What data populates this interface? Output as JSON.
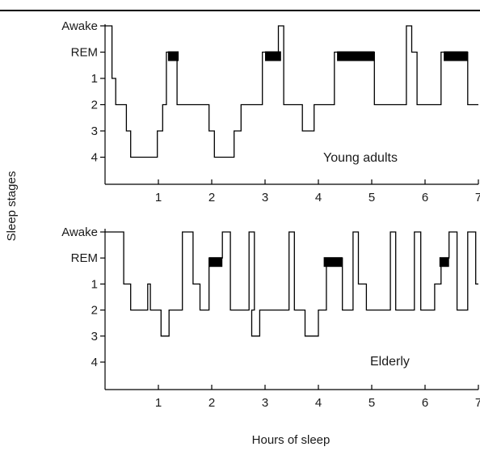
{
  "chart_data": [
    {
      "type": "line",
      "subtype": "hypnogram-step",
      "annotation": "Young adults",
      "xlabel": "",
      "ylabel": "Sleep stages",
      "xlim": [
        0,
        7
      ],
      "xticks": [
        "1",
        "2",
        "3",
        "4",
        "5",
        "6",
        "7"
      ],
      "yticks": [
        "Awake",
        "REM",
        "1",
        "2",
        "3",
        "4"
      ],
      "grid": false,
      "legend": "none",
      "colors": {
        "line": "#000000",
        "rem_bar": "#000000"
      },
      "series": [
        {
          "points": [
            [
              0,
              "Awake"
            ],
            [
              0.13,
              "1"
            ],
            [
              0.2,
              "2"
            ],
            [
              0.4,
              "3"
            ],
            [
              0.48,
              "4"
            ],
            [
              0.98,
              "3"
            ],
            [
              1.08,
              "2"
            ],
            [
              1.15,
              "REM"
            ],
            [
              1.35,
              "2"
            ],
            [
              1.95,
              "3"
            ],
            [
              2.05,
              "4"
            ],
            [
              2.42,
              "3"
            ],
            [
              2.55,
              "2"
            ],
            [
              2.95,
              "REM"
            ],
            [
              3.25,
              "Awake"
            ],
            [
              3.35,
              "2"
            ],
            [
              3.7,
              "3"
            ],
            [
              3.92,
              "2"
            ],
            [
              4.3,
              "REM"
            ],
            [
              5.05,
              "2"
            ],
            [
              5.65,
              "Awake"
            ],
            [
              5.75,
              "REM"
            ],
            [
              5.85,
              "2"
            ],
            [
              6.3,
              "REM"
            ],
            [
              6.8,
              "2"
            ],
            [
              7,
              "2"
            ]
          ]
        }
      ],
      "rem_periods": [
        [
          1.18,
          1.38
        ],
        [
          3.0,
          3.3
        ],
        [
          4.35,
          5.05
        ],
        [
          6.35,
          6.8
        ]
      ]
    },
    {
      "type": "line",
      "subtype": "hypnogram-step",
      "annotation": "Elderly",
      "xlabel": "Hours of sleep",
      "ylabel": "Sleep stages",
      "xlim": [
        0,
        7
      ],
      "xticks": [
        "1",
        "2",
        "3",
        "4",
        "5",
        "6",
        "7"
      ],
      "yticks": [
        "Awake",
        "REM",
        "1",
        "2",
        "3",
        "4"
      ],
      "grid": false,
      "legend": "none",
      "colors": {
        "line": "#000000",
        "rem_bar": "#000000"
      },
      "series": [
        {
          "points": [
            [
              0,
              "Awake"
            ],
            [
              0.35,
              "1"
            ],
            [
              0.48,
              "2"
            ],
            [
              0.8,
              "1"
            ],
            [
              0.85,
              "2"
            ],
            [
              1.05,
              "3"
            ],
            [
              1.2,
              "2"
            ],
            [
              1.45,
              "Awake"
            ],
            [
              1.65,
              "1"
            ],
            [
              1.78,
              "2"
            ],
            [
              1.95,
              "REM"
            ],
            [
              2.2,
              "Awake"
            ],
            [
              2.35,
              "2"
            ],
            [
              2.7,
              "Awake"
            ],
            [
              2.8,
              "2"
            ],
            [
              2.75,
              "3"
            ],
            [
              2.9,
              "2"
            ],
            [
              3.45,
              "Awake"
            ],
            [
              3.55,
              "2"
            ],
            [
              3.75,
              "3"
            ],
            [
              4.0,
              "2"
            ],
            [
              4.15,
              "REM"
            ],
            [
              4.45,
              "2"
            ],
            [
              4.65,
              "Awake"
            ],
            [
              4.75,
              "1"
            ],
            [
              4.9,
              "2"
            ],
            [
              5.35,
              "Awake"
            ],
            [
              5.45,
              "2"
            ],
            [
              5.8,
              "Awake"
            ],
            [
              5.92,
              "2"
            ],
            [
              6.18,
              "1"
            ],
            [
              6.3,
              "REM"
            ],
            [
              6.45,
              "Awake"
            ],
            [
              6.6,
              "2"
            ],
            [
              6.8,
              "Awake"
            ],
            [
              6.95,
              "1"
            ],
            [
              7,
              "1"
            ]
          ]
        }
      ],
      "rem_periods": [
        [
          1.95,
          2.2
        ],
        [
          4.1,
          4.45
        ],
        [
          6.27,
          6.45
        ]
      ]
    }
  ]
}
